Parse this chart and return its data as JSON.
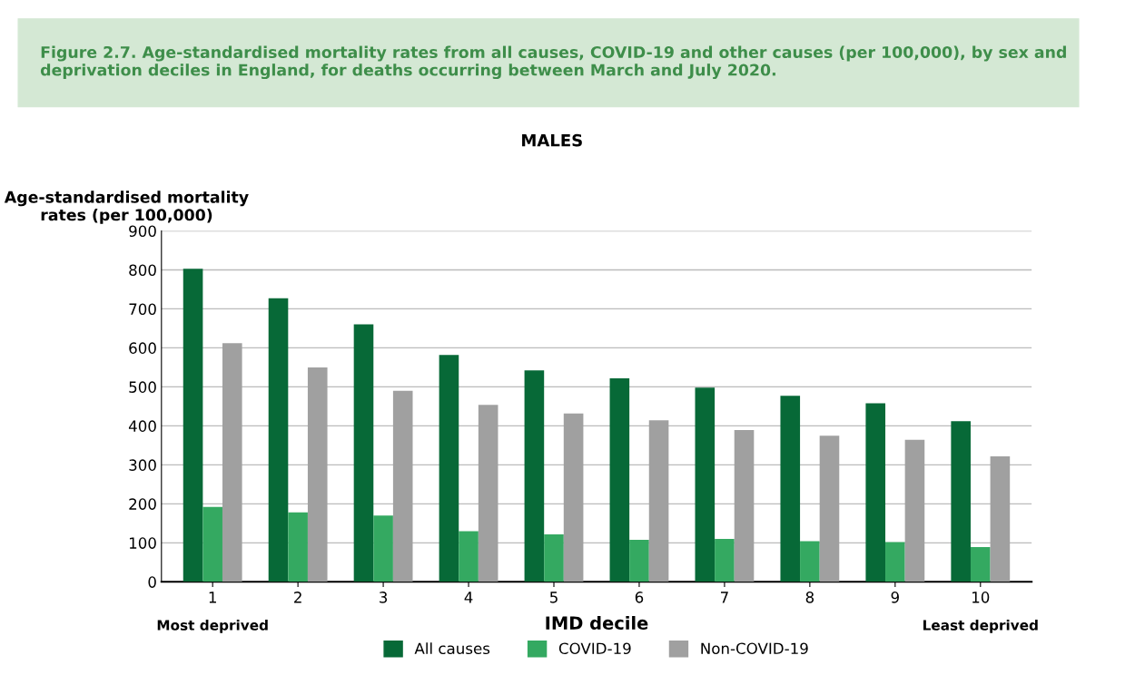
{
  "chart_data": {
    "type": "bar",
    "title": "Figure 2.7. Age-standardised mortality rates from all causes, COVID-19 and other causes (per 100,000), by sex and deprivation deciles in England, for deaths occurring between March and July 2020.",
    "subtitle": "MALES",
    "xlabel": "IMD decile",
    "ylabel": "Age-standardised mortality\nrates (per 100,000)",
    "categories": [
      "1",
      "2",
      "3",
      "4",
      "5",
      "6",
      "7",
      "8",
      "9",
      "10"
    ],
    "series": [
      {
        "name": "All causes",
        "color": "#076937",
        "values": [
          803,
          727,
          660,
          582,
          542,
          522,
          498,
          477,
          458,
          412
        ]
      },
      {
        "name": "COVID-19",
        "color": "#34a961",
        "values": [
          192,
          178,
          170,
          130,
          122,
          108,
          110,
          104,
          102,
          89
        ]
      },
      {
        "name": "Non-COVID-19",
        "color": "#a0a0a0",
        "values": [
          612,
          550,
          490,
          454,
          432,
          414,
          389,
          375,
          364,
          322
        ]
      }
    ],
    "annotations": [
      "Most deprived",
      "Least deprived"
    ],
    "ylim": [
      0,
      900
    ],
    "yticks": [
      0,
      100,
      200,
      300,
      400,
      500,
      600,
      700,
      800,
      900
    ],
    "grid": "y",
    "legend": "bottom"
  }
}
